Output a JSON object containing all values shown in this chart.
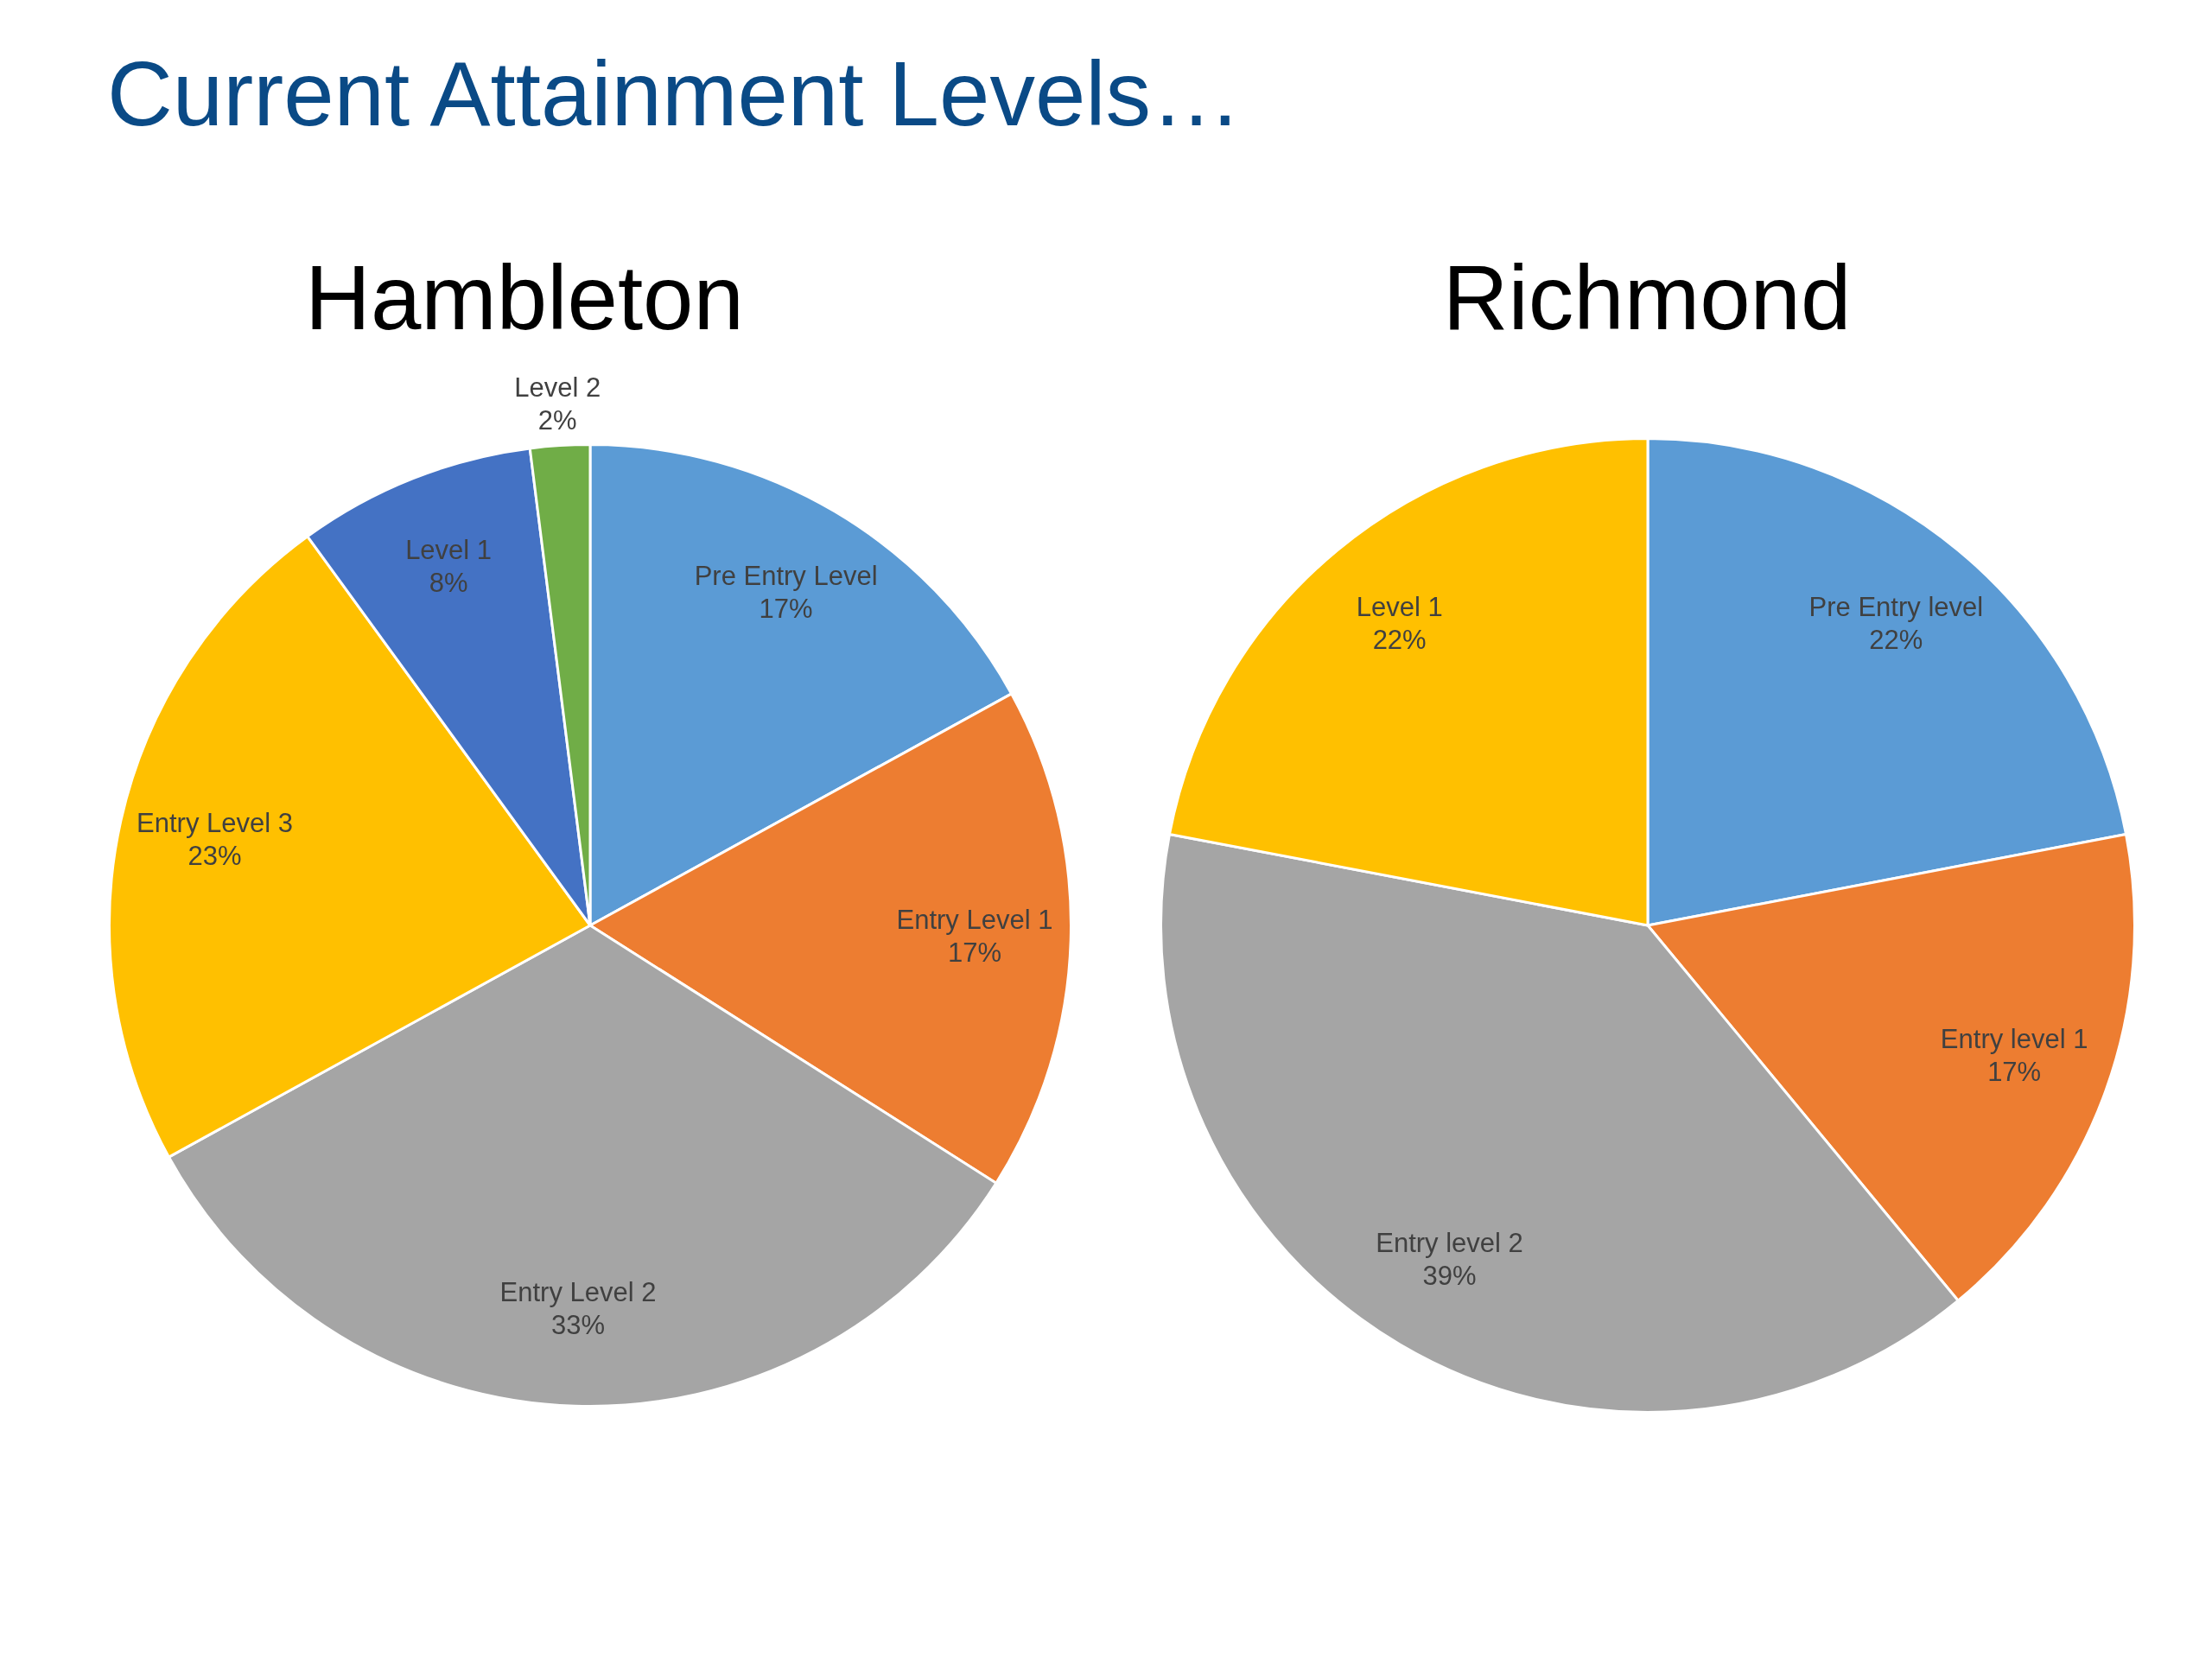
{
  "chart_data": [
    {
      "type": "pie",
      "title": "Hambleton",
      "annotations": [
        "Current Attainment Levels…"
      ],
      "categories": [
        "Pre Entry Level",
        "Entry Level 1",
        "Entry Level 2",
        "Entry Level 3",
        "Level 1",
        "Level 2"
      ],
      "values": [
        17,
        17,
        33,
        23,
        8,
        2
      ],
      "value_labels": [
        "17%",
        "17%",
        "33%",
        "23%",
        "8%",
        "2%"
      ],
      "colors": [
        "#5b9bd5",
        "#ed7d31",
        "#a5a5a5",
        "#ffc000",
        "#4472c4",
        "#70ad47"
      ]
    },
    {
      "type": "pie",
      "title": "Richmond",
      "categories": [
        "Pre Entry level",
        "Entry level 1",
        "Entry level 2",
        "Level 1"
      ],
      "values": [
        22,
        17,
        39,
        22
      ],
      "value_labels": [
        "22%",
        "17%",
        "39%",
        "22%"
      ],
      "colors": [
        "#5b9bd5",
        "#ed7d31",
        "#a5a5a5",
        "#ffc000"
      ]
    }
  ]
}
